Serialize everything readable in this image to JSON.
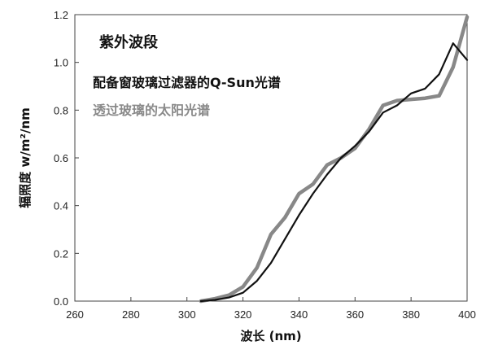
{
  "chart_data": {
    "type": "line",
    "title": "紫外波段",
    "xlabel": "波长 (nm)",
    "ylabel": "辐照度 w/m²/nm",
    "xlim": [
      260,
      400
    ],
    "ylim": [
      0.0,
      1.2
    ],
    "xticks": [
      "260",
      "280",
      "300",
      "320",
      "340",
      "360",
      "380",
      "400"
    ],
    "yticks": [
      "0.0",
      "0.2",
      "0.4",
      "0.6",
      "0.8",
      "1.0",
      "1.2"
    ],
    "grid": false,
    "series": [
      {
        "name": "配备窗玻璃过滤器的Q-Sun光谱",
        "color": "#111111",
        "x": [
          305,
          310,
          315,
          320,
          325,
          330,
          335,
          340,
          345,
          350,
          355,
          360,
          365,
          370,
          375,
          380,
          385,
          390,
          395,
          400
        ],
        "y": [
          0.0,
          0.005,
          0.015,
          0.035,
          0.085,
          0.16,
          0.26,
          0.36,
          0.45,
          0.53,
          0.6,
          0.65,
          0.71,
          0.79,
          0.82,
          0.87,
          0.89,
          0.95,
          1.08,
          1.01
        ]
      },
      {
        "name": "透过玻璃的太阳光谱",
        "color": "#888888",
        "x": [
          305,
          310,
          315,
          320,
          325,
          330,
          335,
          340,
          345,
          350,
          355,
          360,
          365,
          370,
          375,
          380,
          385,
          390,
          395,
          400
        ],
        "y": [
          0.0,
          0.01,
          0.025,
          0.06,
          0.14,
          0.28,
          0.35,
          0.45,
          0.49,
          0.57,
          0.6,
          0.64,
          0.72,
          0.82,
          0.84,
          0.845,
          0.85,
          0.86,
          0.98,
          1.19
        ]
      }
    ]
  }
}
